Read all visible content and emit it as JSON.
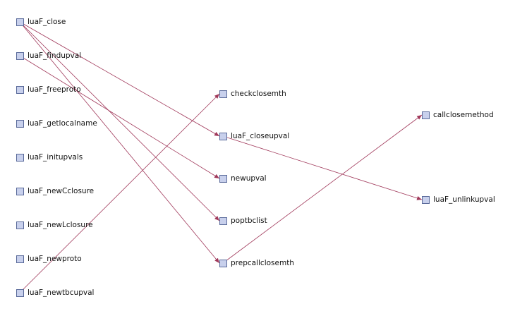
{
  "diagram": {
    "edge_color": "#a0385a",
    "node_fill": "#c8d0ec",
    "node_border": "#5a6a9a",
    "nodes": [
      {
        "id": "luaF_close",
        "label": "luaF_close"
      },
      {
        "id": "luaF_findupval",
        "label": "luaF_findupval"
      },
      {
        "id": "luaF_freeproto",
        "label": "luaF_freeproto"
      },
      {
        "id": "luaF_getlocalname",
        "label": "luaF_getlocalname"
      },
      {
        "id": "luaF_initupvals",
        "label": "luaF_initupvals"
      },
      {
        "id": "luaF_newCclosure",
        "label": "luaF_newCclosure"
      },
      {
        "id": "luaF_newLclosure",
        "label": "luaF_newLclosure"
      },
      {
        "id": "luaF_newproto",
        "label": "luaF_newproto"
      },
      {
        "id": "luaF_newtbcupval",
        "label": "luaF_newtbcupval"
      },
      {
        "id": "checkclosemth",
        "label": "checkclosemth"
      },
      {
        "id": "luaF_closeupval",
        "label": "luaF_closeupval"
      },
      {
        "id": "newupval",
        "label": "newupval"
      },
      {
        "id": "poptbclist",
        "label": "poptbclist"
      },
      {
        "id": "prepcallclosemth",
        "label": "prepcallclosemth"
      },
      {
        "id": "callclosemethod",
        "label": "callclosemethod"
      },
      {
        "id": "luaF_unlinkupval",
        "label": "luaF_unlinkupval"
      }
    ],
    "edges": [
      {
        "from": "luaF_close",
        "to": "luaF_closeupval"
      },
      {
        "from": "luaF_close",
        "to": "poptbclist"
      },
      {
        "from": "luaF_close",
        "to": "prepcallclosemth"
      },
      {
        "from": "luaF_findupval",
        "to": "newupval"
      },
      {
        "from": "luaF_newtbcupval",
        "to": "checkclosemth"
      },
      {
        "from": "luaF_closeupval",
        "to": "luaF_unlinkupval"
      },
      {
        "from": "prepcallclosemth",
        "to": "callclosemethod"
      }
    ]
  }
}
